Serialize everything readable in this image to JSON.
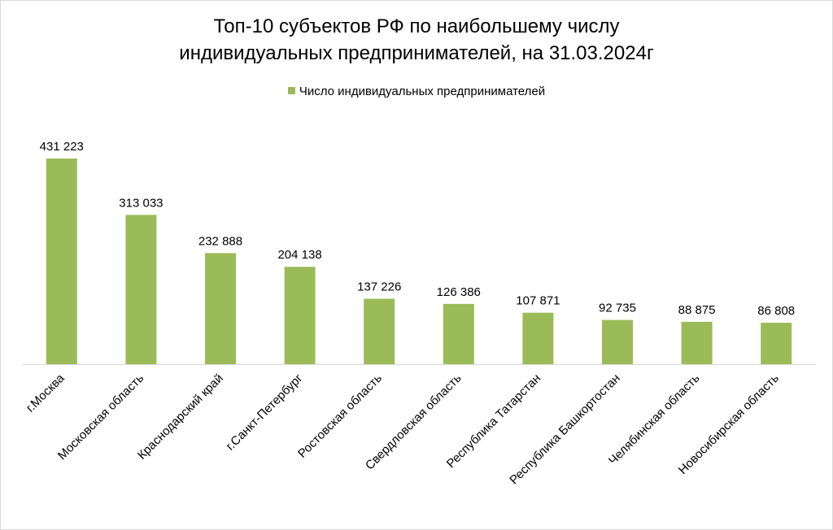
{
  "chart_data": {
    "type": "bar",
    "title_line1": "Топ-10 субъектов РФ по наибольшему числу",
    "title_line2": "индивидуальных  предпринимателей,  на 31.03.2024г",
    "categories": [
      "г.Москва",
      "Московская область",
      "Краснодарский край",
      "г.Санкт-Петербург",
      "Ростовская область",
      "Свердловская область",
      "Республика  Татарстан",
      "Республика  Башкортостан",
      "Челябинская область",
      "Новосибирская область"
    ],
    "values": [
      431223,
      313033,
      232888,
      204138,
      137226,
      126386,
      107871,
      92735,
      88875,
      86808
    ],
    "value_labels": [
      "431 223",
      "313 033",
      "232 888",
      "204 138",
      "137 226",
      "126 386",
      "107 871",
      "92 735",
      "88 875",
      "86 808"
    ],
    "series": [
      {
        "name": "Число индивидуальных предпринимателей",
        "values": [
          431223,
          313033,
          232888,
          204138,
          137226,
          126386,
          107871,
          92735,
          88875,
          86808
        ]
      }
    ],
    "ylim": [
      0,
      500000
    ],
    "grid": false,
    "legend_position": "top",
    "bar_color": "#9bbb59",
    "axis_color": "#d9d9d9"
  }
}
